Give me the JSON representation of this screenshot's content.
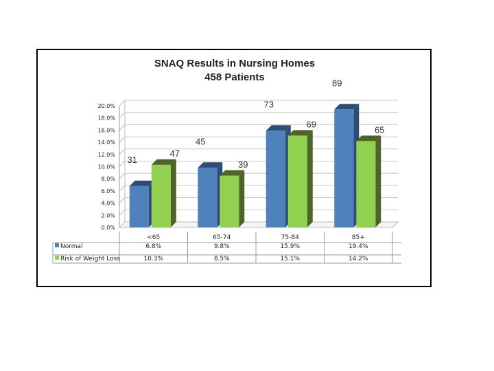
{
  "chart_data": {
    "type": "bar",
    "title_lines": [
      "SNAQ Results in Nursing Homes",
      "458 Patients"
    ],
    "categories": [
      "<65",
      "65-74",
      "75-84",
      "85+"
    ],
    "y_ticks": [
      "0.0%",
      "2.0%",
      "4.0%",
      "6.0%",
      "8.0%",
      "10.0%",
      "12.0%",
      "14.0%",
      "16.0%",
      "18.0%",
      "20.0%"
    ],
    "ylim": [
      0,
      20
    ],
    "grid": true,
    "legend": "table",
    "series": [
      {
        "name": "Normal",
        "values": [
          6.8,
          9.8,
          15.9,
          19.4
        ],
        "labels": [
          "6.8%",
          "9.8%",
          "15.9%",
          "19.4%"
        ],
        "counts": [
          "31",
          "45",
          "73",
          "89"
        ],
        "color": "#4f81bd",
        "side_color": "#2c4d75"
      },
      {
        "name": "Risk of Weight Loss",
        "values": [
          10.3,
          8.5,
          15.1,
          14.2
        ],
        "labels": [
          "10.3%",
          "8.5%",
          "15.1%",
          "14.2%"
        ],
        "counts": [
          "47",
          "39",
          "69",
          "65"
        ],
        "color": "#92d050",
        "side_color": "#4f6228"
      }
    ]
  }
}
